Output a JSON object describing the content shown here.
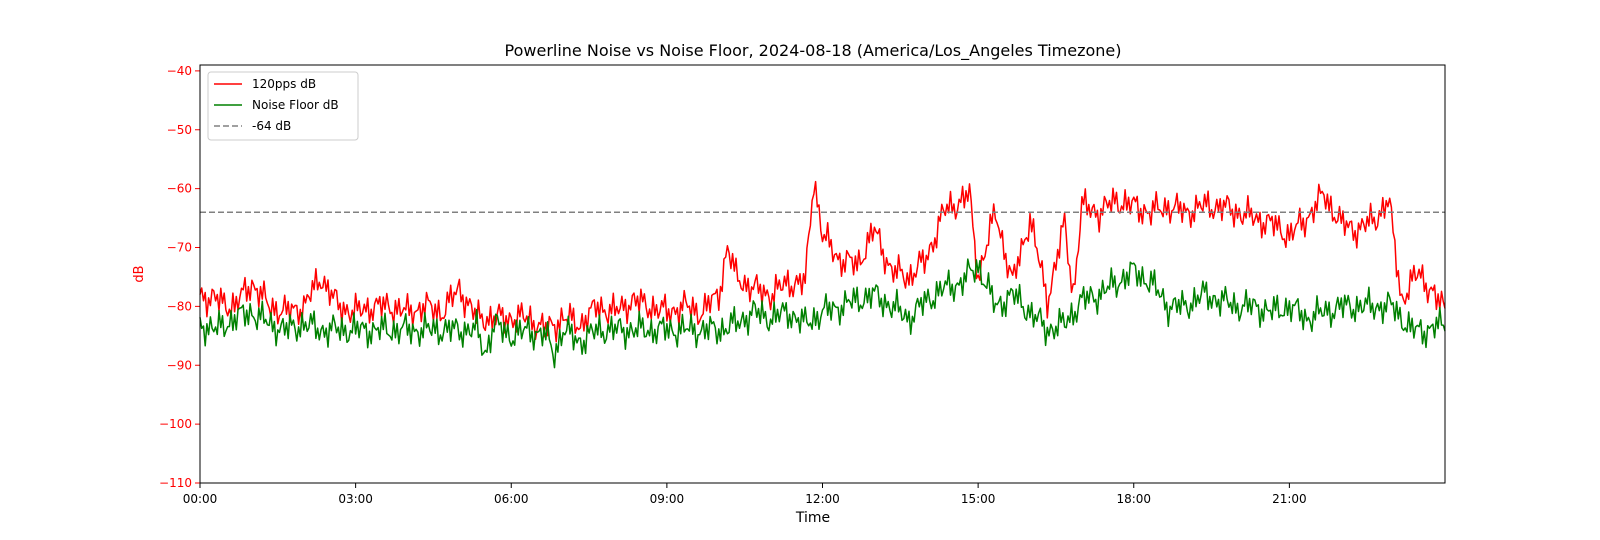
{
  "chart_data": {
    "type": "line",
    "title": "Powerline Noise vs Noise Floor, 2024-08-18 (America/Los_Angeles Timezone)",
    "xlabel": "Time",
    "ylabel": "dB",
    "xlim": [
      "00:00",
      "24:00"
    ],
    "ylim": [
      -110,
      -39
    ],
    "x_ticks": [
      "00:00",
      "03:00",
      "06:00",
      "09:00",
      "12:00",
      "15:00",
      "18:00",
      "21:00"
    ],
    "y_ticks": [
      -40,
      -50,
      -60,
      -70,
      -80,
      -90,
      -100,
      -110
    ],
    "y_tick_labels": [
      "−40",
      "−50",
      "−60",
      "−70",
      "−80",
      "−90",
      "−100",
      "−110"
    ],
    "grid": false,
    "legend_position": "upper-left",
    "y_axis_color": "#ff0000",
    "series": [
      {
        "name": "120pps dB",
        "color": "#ff0000",
        "style": "solid",
        "x": [
          "00:00",
          "00:20",
          "00:40",
          "01:00",
          "01:20",
          "01:40",
          "02:00",
          "02:20",
          "02:40",
          "03:00",
          "03:20",
          "03:40",
          "04:00",
          "04:20",
          "04:40",
          "05:00",
          "05:20",
          "05:40",
          "06:00",
          "06:20",
          "06:40",
          "07:00",
          "07:20",
          "07:40",
          "08:00",
          "08:20",
          "08:40",
          "09:00",
          "09:20",
          "09:40",
          "10:00",
          "10:10",
          "10:20",
          "10:40",
          "11:00",
          "11:20",
          "11:40",
          "11:50",
          "12:00",
          "12:20",
          "12:40",
          "13:00",
          "13:20",
          "13:40",
          "14:00",
          "14:20",
          "14:40",
          "14:50",
          "15:00",
          "15:20",
          "15:40",
          "16:00",
          "16:20",
          "16:40",
          "16:50",
          "17:00",
          "17:20",
          "17:40",
          "18:00",
          "18:20",
          "18:40",
          "19:00",
          "19:20",
          "19:40",
          "20:00",
          "20:20",
          "20:40",
          "21:00",
          "21:20",
          "21:40",
          "22:00",
          "22:20",
          "22:40",
          "22:55",
          "23:10",
          "23:30",
          "23:50",
          "24:00"
        ],
        "y": [
          -78,
          -79,
          -80,
          -76,
          -80,
          -81,
          -80,
          -75,
          -80,
          -81,
          -80,
          -80,
          -81,
          -80,
          -81,
          -77,
          -82,
          -82,
          -82,
          -82,
          -84,
          -82,
          -83,
          -80,
          -81,
          -79,
          -80,
          -81,
          -80,
          -81,
          -78,
          -70,
          -75,
          -77,
          -78,
          -76,
          -76,
          -58,
          -68,
          -72,
          -73,
          -67,
          -74,
          -75,
          -72,
          -64,
          -62,
          -61,
          -75,
          -64,
          -76,
          -65,
          -79,
          -66,
          -78,
          -63,
          -64,
          -62,
          -63,
          -64,
          -63,
          -64,
          -63,
          -63,
          -64,
          -65,
          -66,
          -68,
          -65,
          -61,
          -66,
          -67,
          -65,
          -62,
          -79,
          -74,
          -79,
          -80
        ]
      },
      {
        "name": "Noise Floor dB",
        "color": "#008000",
        "style": "solid",
        "x": [
          "00:00",
          "00:20",
          "00:40",
          "01:00",
          "01:20",
          "01:40",
          "02:00",
          "02:20",
          "02:40",
          "03:00",
          "03:20",
          "03:40",
          "04:00",
          "04:20",
          "04:40",
          "05:00",
          "05:20",
          "05:30",
          "05:40",
          "06:00",
          "06:20",
          "06:40",
          "06:50",
          "07:00",
          "07:20",
          "07:40",
          "08:00",
          "08:20",
          "08:40",
          "09:00",
          "09:20",
          "09:40",
          "10:00",
          "10:20",
          "10:40",
          "11:00",
          "11:20",
          "11:40",
          "12:00",
          "12:20",
          "12:40",
          "13:00",
          "13:20",
          "13:40",
          "14:00",
          "14:20",
          "14:40",
          "15:00",
          "15:20",
          "15:40",
          "16:00",
          "16:20",
          "16:40",
          "17:00",
          "17:20",
          "17:40",
          "18:00",
          "18:20",
          "18:40",
          "19:00",
          "19:20",
          "19:40",
          "20:00",
          "20:20",
          "20:40",
          "21:00",
          "21:20",
          "21:40",
          "22:00",
          "22:20",
          "22:40",
          "23:00",
          "23:20",
          "23:40",
          "24:00"
        ],
        "y": [
          -83,
          -84,
          -82,
          -81,
          -83,
          -84,
          -83,
          -84,
          -84,
          -84,
          -84,
          -84,
          -84,
          -84,
          -84,
          -84,
          -84,
          -88,
          -83,
          -85,
          -84,
          -85,
          -88,
          -84,
          -86,
          -84,
          -84,
          -84,
          -84,
          -84,
          -84,
          -84,
          -84,
          -83,
          -81,
          -82,
          -81,
          -83,
          -81,
          -80,
          -79,
          -78,
          -80,
          -82,
          -79,
          -77,
          -76,
          -73,
          -80,
          -78,
          -81,
          -84,
          -83,
          -79,
          -78,
          -76,
          -74,
          -76,
          -80,
          -80,
          -78,
          -79,
          -80,
          -80,
          -81,
          -80,
          -82,
          -81,
          -80,
          -80,
          -80,
          -80,
          -84,
          -84,
          -83
        ]
      },
      {
        "name": "-64 dB",
        "color": "#808080",
        "style": "dashed",
        "x": [
          "00:00",
          "24:00"
        ],
        "y": [
          -64,
          -64
        ]
      }
    ]
  }
}
